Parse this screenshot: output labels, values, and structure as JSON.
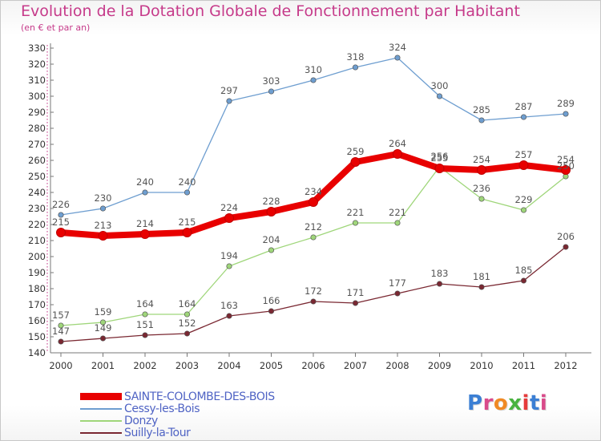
{
  "title": "Evolution de la Dotation Globale de Fonctionnement par Habitant",
  "subtitle": "(en € et par an)",
  "logo": {
    "text": "Proxiti",
    "colors": [
      "#3b7fd4",
      "#d94a8a",
      "#f08a24",
      "#49b340",
      "#e63b3b",
      "#3b7fd4",
      "#d94a8a"
    ]
  },
  "chart_data": {
    "type": "line",
    "title": "Evolution de la Dotation Globale de Fonctionnement par Habitant",
    "subtitle": "(en € et par an)",
    "x": [
      2000,
      2001,
      2002,
      2003,
      2004,
      2005,
      2006,
      2007,
      2008,
      2009,
      2010,
      2011,
      2012
    ],
    "ylim": [
      140,
      330
    ],
    "ytick_step": 10,
    "grid": false,
    "legend_position": "bottom-left",
    "series": [
      {
        "name": "Cessy-les-Bois",
        "color": "#6e9ed0",
        "values": [
          226,
          230,
          240,
          240,
          297,
          303,
          310,
          318,
          324,
          300,
          285,
          287,
          289
        ]
      },
      {
        "name": "Donzy",
        "color": "#9fd67a",
        "values": [
          157,
          159,
          164,
          164,
          194,
          204,
          212,
          221,
          221,
          256,
          236,
          229,
          250
        ]
      },
      {
        "name": "Suilly-la-Tour",
        "color": "#7a2832",
        "values": [
          147,
          149,
          151,
          152,
          163,
          166,
          172,
          171,
          177,
          183,
          181,
          185,
          206
        ]
      },
      {
        "name": "SAINTE-COLOMBE-DES-BOIS",
        "color": "#e80000",
        "values": [
          215,
          213,
          214,
          215,
          224,
          228,
          234,
          259,
          264,
          255,
          254,
          257,
          254
        ]
      }
    ],
    "legend_order": [
      "SAINTE-COLOMBE-DES-BOIS",
      "Cessy-les-Bois",
      "Donzy",
      "Suilly-la-Tour"
    ]
  }
}
